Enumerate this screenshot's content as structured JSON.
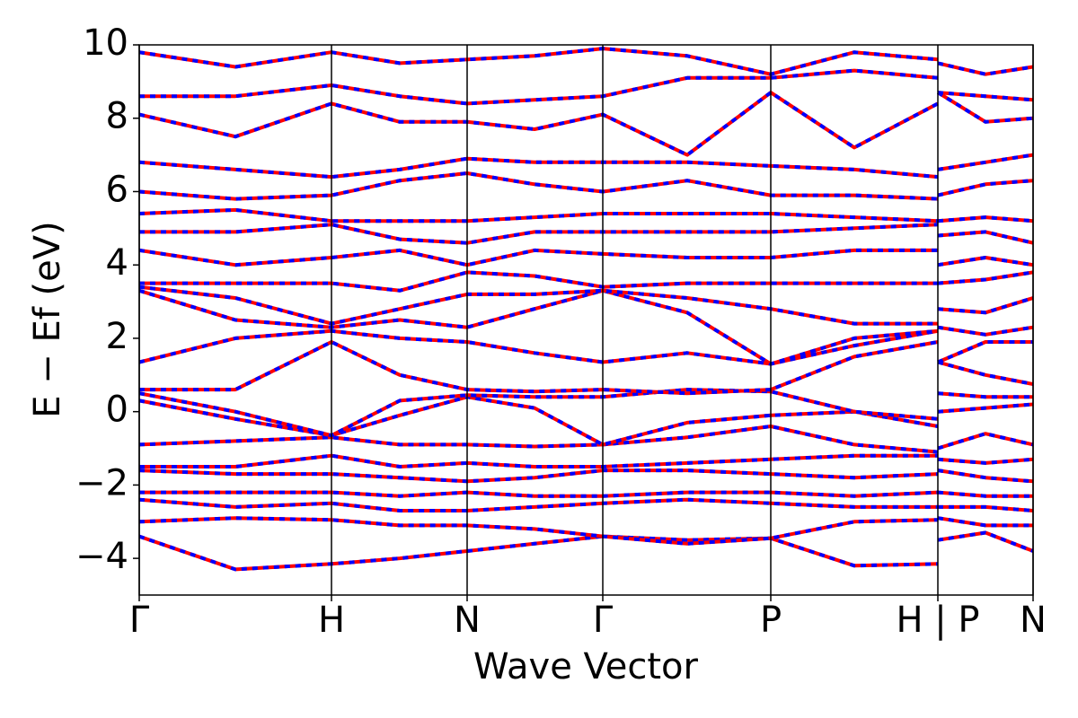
{
  "chart_data": {
    "type": "line",
    "xlabel": "Wave Vector",
    "ylabel": "E − Ef (eV)",
    "x": [
      0,
      1.07,
      2.14,
      2.9,
      3.65,
      4.4,
      5.16,
      6.1,
      7.03,
      7.96,
      8.89,
      8.89,
      8.89,
      9.42,
      9.95
    ],
    "xlim": [
      0,
      9.95
    ],
    "xticks": [
      {
        "value": 0,
        "label": "Γ"
      },
      {
        "value": 2.14,
        "label": "H"
      },
      {
        "value": 3.65,
        "label": "N"
      },
      {
        "value": 5.16,
        "label": "Γ"
      },
      {
        "value": 7.03,
        "label": "P"
      },
      {
        "value": 8.89,
        "label": "H | P"
      },
      {
        "value": 9.95,
        "label": "N"
      }
    ],
    "ylim": [
      -5,
      10
    ],
    "yticks": [
      {
        "value": -4,
        "label": "−4"
      },
      {
        "value": -2,
        "label": "−2"
      },
      0,
      2,
      4,
      6,
      8,
      10
    ],
    "line_color": "#ff0000",
    "dash_color": "#0000ff",
    "grid": true,
    "series": [
      {
        "values": [
          -3.4,
          -4.3,
          -4.15,
          -4.0,
          -3.8,
          -3.6,
          -3.4,
          -3.5,
          -3.45,
          -4.2,
          -4.15,
          null,
          -3.5,
          -3.3,
          -3.8
        ]
      },
      {
        "values": [
          -3.0,
          -2.9,
          -2.95,
          -3.1,
          -3.1,
          -3.2,
          -3.4,
          -3.6,
          -3.45,
          -3.0,
          -2.95,
          null,
          -2.9,
          -3.1,
          -3.1
        ]
      },
      {
        "values": [
          -2.4,
          -2.6,
          -2.5,
          -2.7,
          -2.7,
          -2.6,
          -2.5,
          -2.4,
          -2.5,
          -2.6,
          -2.6,
          null,
          -2.6,
          -2.6,
          -2.7
        ]
      },
      {
        "values": [
          -2.2,
          -2.2,
          -2.2,
          -2.3,
          -2.2,
          -2.3,
          -2.3,
          -2.2,
          -2.2,
          -2.3,
          -2.2,
          null,
          -2.2,
          -2.3,
          -2.3
        ]
      },
      {
        "values": [
          -1.6,
          -1.7,
          -1.7,
          -1.8,
          -1.9,
          -1.8,
          -1.6,
          -1.6,
          -1.7,
          -1.8,
          -1.7,
          null,
          -1.6,
          -1.8,
          -1.9
        ]
      },
      {
        "values": [
          -1.5,
          -1.5,
          -1.2,
          -1.5,
          -1.4,
          -1.5,
          -1.5,
          -1.4,
          -1.3,
          -1.2,
          -1.2,
          null,
          -1.3,
          -1.4,
          -1.3
        ]
      },
      {
        "values": [
          -0.9,
          -0.8,
          -0.7,
          -0.9,
          -0.9,
          -0.95,
          -0.9,
          -0.7,
          -0.4,
          -0.9,
          -1.1,
          null,
          -1.0,
          -0.6,
          -0.9
        ]
      },
      {
        "values": [
          0.3,
          -0.2,
          -0.65,
          -0.1,
          0.4,
          0.1,
          -0.9,
          -0.3,
          -0.1,
          0.0,
          -0.4,
          null,
          0.0,
          0.1,
          0.2
        ]
      },
      {
        "values": [
          0.5,
          0.0,
          -0.65,
          0.3,
          0.45,
          0.4,
          0.4,
          0.6,
          0.55,
          0.0,
          -0.2,
          null,
          0.5,
          0.4,
          0.4
        ]
      },
      {
        "values": [
          0.6,
          0.6,
          1.9,
          1.0,
          0.6,
          0.55,
          0.6,
          0.5,
          0.6,
          1.5,
          1.9,
          null,
          1.35,
          1.0,
          0.75
        ]
      },
      {
        "values": [
          1.35,
          2.0,
          2.2,
          2.0,
          1.9,
          1.6,
          1.35,
          1.6,
          1.3,
          1.8,
          2.2,
          null,
          1.35,
          1.9,
          1.9
        ]
      },
      {
        "values": [
          3.3,
          2.5,
          2.3,
          2.5,
          2.3,
          2.8,
          3.3,
          2.7,
          1.3,
          2.0,
          2.2,
          null,
          2.3,
          2.1,
          2.3
        ]
      },
      {
        "values": [
          3.4,
          3.1,
          2.4,
          2.8,
          3.2,
          3.2,
          3.3,
          3.1,
          2.8,
          2.4,
          2.4,
          null,
          2.8,
          2.7,
          3.1
        ]
      },
      {
        "values": [
          3.5,
          3.5,
          3.5,
          3.3,
          3.8,
          3.7,
          3.4,
          3.5,
          3.5,
          3.5,
          3.5,
          null,
          3.5,
          3.6,
          3.8
        ]
      },
      {
        "values": [
          4.4,
          4.0,
          4.2,
          4.4,
          4.0,
          4.4,
          4.3,
          4.2,
          4.2,
          4.4,
          4.4,
          null,
          4.0,
          4.2,
          4.0
        ]
      },
      {
        "values": [
          4.9,
          4.9,
          5.1,
          4.7,
          4.6,
          4.9,
          4.9,
          4.9,
          4.9,
          5.0,
          5.1,
          null,
          4.8,
          4.9,
          4.6
        ]
      },
      {
        "values": [
          5.4,
          5.5,
          5.2,
          5.2,
          5.2,
          5.3,
          5.4,
          5.4,
          5.4,
          5.3,
          5.2,
          null,
          5.2,
          5.3,
          5.2
        ]
      },
      {
        "values": [
          6.0,
          5.8,
          5.9,
          6.3,
          6.5,
          6.2,
          6.0,
          6.3,
          5.9,
          5.9,
          5.8,
          null,
          5.9,
          6.2,
          6.3
        ]
      },
      {
        "values": [
          6.8,
          6.6,
          6.4,
          6.6,
          6.9,
          6.8,
          6.8,
          6.8,
          6.7,
          6.6,
          6.4,
          null,
          6.6,
          6.8,
          7.0
        ]
      },
      {
        "values": [
          8.1,
          7.5,
          8.4,
          7.9,
          7.9,
          7.7,
          8.1,
          7.0,
          8.7,
          7.2,
          8.4,
          null,
          8.7,
          7.9,
          8.0
        ]
      },
      {
        "values": [
          8.6,
          8.6,
          8.9,
          8.6,
          8.4,
          8.5,
          8.6,
          9.1,
          9.1,
          9.3,
          9.1,
          null,
          8.7,
          8.6,
          8.5
        ]
      },
      {
        "values": [
          9.8,
          9.4,
          9.8,
          9.5,
          9.6,
          9.7,
          9.9,
          9.7,
          9.2,
          9.8,
          9.6,
          null,
          9.5,
          9.2,
          9.4
        ]
      }
    ]
  }
}
